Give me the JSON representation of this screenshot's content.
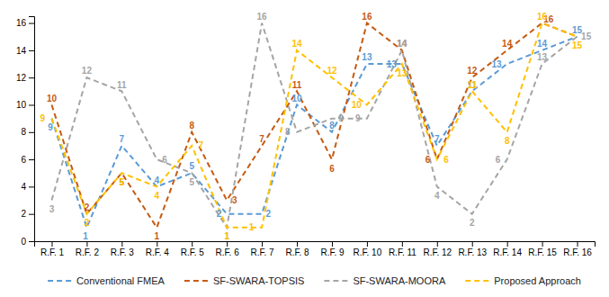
{
  "chart_data": {
    "type": "line",
    "categories": [
      "R.F. 1",
      "R.F. 2",
      "R.F. 3",
      "R.F. 4",
      "R.F. 5",
      "R.F. 6",
      "R.F. 7",
      "R.F. 8",
      "R.F. 9",
      "R.F. 10",
      "R.F. 11",
      "R.F. 12",
      "R.F. 13",
      "R.F. 14",
      "R.F. 15",
      "R.F. 16"
    ],
    "series": [
      {
        "name": "Conventional FMEA",
        "color": "#5b9bd5",
        "line_style": "dashed",
        "values": [
          9,
          1,
          7,
          4,
          5,
          2,
          2,
          10,
          8,
          13,
          13,
          7,
          11,
          13,
          14,
          15
        ]
      },
      {
        "name": "SF-SWARA-TOPSIS",
        "color": "#c55a11",
        "line_style": "dashed",
        "values": [
          10,
          2,
          5,
          1,
          8,
          3,
          7,
          11,
          6,
          16,
          14,
          6,
          12,
          14,
          16,
          15
        ],
        "value_labels": [
          "10",
          "2",
          "5",
          "1",
          "8",
          "3",
          "7",
          "11",
          "6",
          "16",
          "14",
          "6",
          "12",
          "14",
          "16",
          null
        ]
      },
      {
        "name": "SF-SWARA-MOORA",
        "color": "#a5a5a5",
        "line_style": "dashed",
        "values": [
          3,
          12,
          11,
          6,
          5,
          1,
          16,
          8,
          9,
          9,
          14,
          4,
          2,
          6,
          13,
          15
        ]
      },
      {
        "name": "Proposed Approach",
        "color": "#ffc000",
        "line_style": "dashed",
        "values": [
          9,
          2,
          5,
          4,
          7,
          1,
          1,
          14,
          12,
          10,
          13,
          6,
          11,
          8,
          16,
          15
        ]
      }
    ],
    "ylim": [
      0,
      16.5
    ],
    "yticks": [
      0,
      2,
      4,
      6,
      8,
      10,
      12,
      14,
      16
    ],
    "grid": false,
    "legend": "bottom",
    "data_labels": true
  }
}
